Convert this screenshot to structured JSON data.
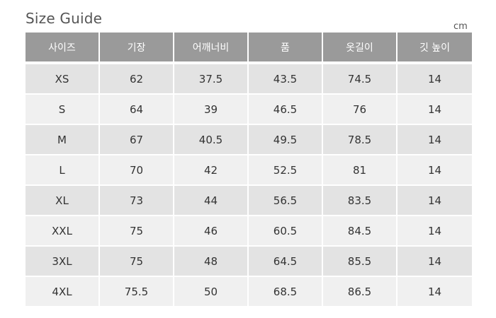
{
  "title": "Size Guide",
  "unit": "cm",
  "table": {
    "headers": [
      "사이즈",
      "기장",
      "어깨너비",
      "품",
      "옷길이",
      "깃 높이"
    ],
    "rows": [
      [
        "XS",
        "62",
        "37.5",
        "43.5",
        "74.5",
        "14"
      ],
      [
        "S",
        "64",
        "39",
        "46.5",
        "76",
        "14"
      ],
      [
        "M",
        "67",
        "40.5",
        "49.5",
        "78.5",
        "14"
      ],
      [
        "L",
        "70",
        "42",
        "52.5",
        "81",
        "14"
      ],
      [
        "XL",
        "73",
        "44",
        "56.5",
        "83.5",
        "14"
      ],
      [
        "XXL",
        "75",
        "46",
        "60.5",
        "84.5",
        "14"
      ],
      [
        "3XL",
        "75",
        "48",
        "64.5",
        "85.5",
        "14"
      ],
      [
        "4XL",
        "75.5",
        "50",
        "68.5",
        "86.5",
        "14"
      ]
    ]
  },
  "colors": {
    "header_bg": "#9a9a9a",
    "row_odd_bg": "#e3e3e3",
    "row_even_bg": "#f0f0f0"
  }
}
